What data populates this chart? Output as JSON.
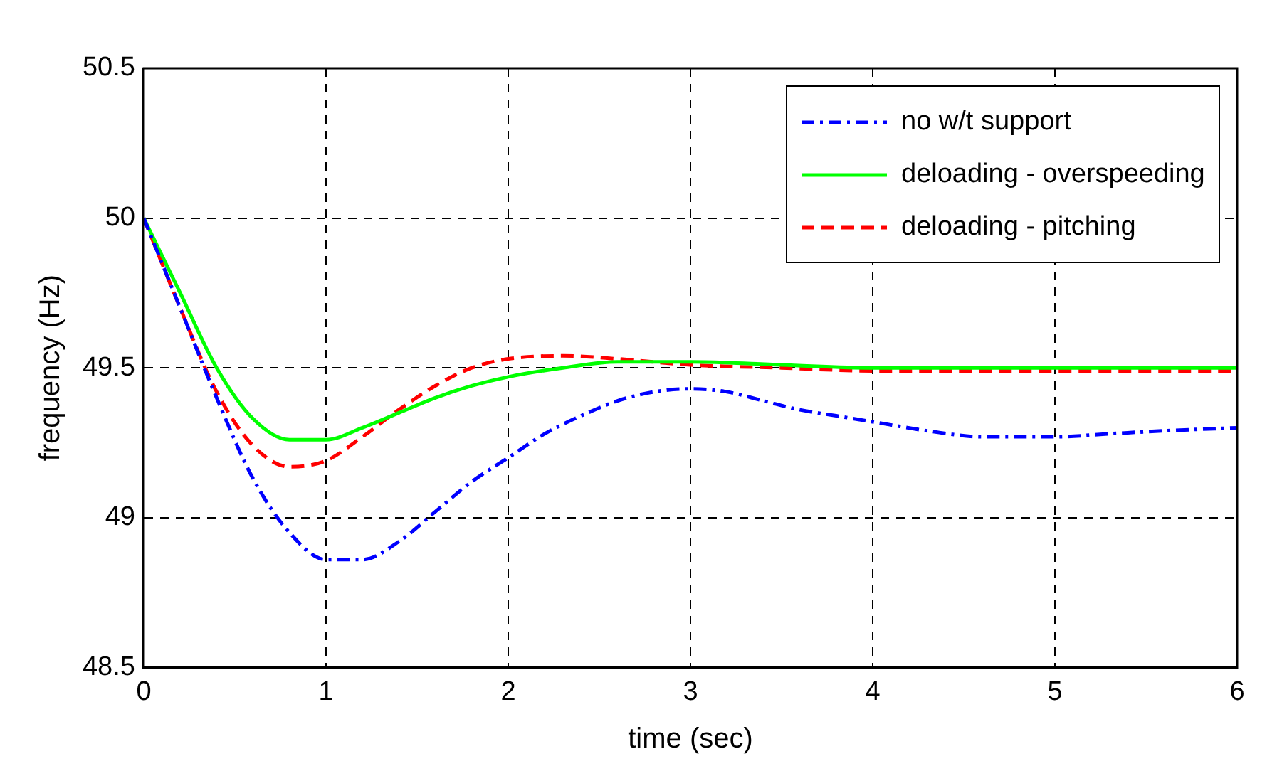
{
  "chart_data": {
    "type": "line",
    "xlabel": "time (sec)",
    "ylabel": "frequency (Hz)",
    "xlim": [
      0,
      6
    ],
    "xticks": [
      0,
      1,
      2,
      3,
      4,
      5,
      6
    ],
    "ylim": [
      48.5,
      50.5
    ],
    "yticks": [
      48.5,
      49,
      49.5,
      50,
      50.5
    ],
    "grid": true,
    "legend": "top right",
    "marker": "none",
    "series": [
      {
        "name": "no w/t support",
        "color": "#0000ff",
        "line_style": "dashdot",
        "x": [
          0,
          0.2,
          0.4,
          0.6,
          0.8,
          1,
          1.2,
          1.4,
          1.6,
          1.8,
          2,
          2.2,
          2.4,
          2.6,
          2.8,
          3,
          3.2,
          3.4,
          3.6,
          3.8,
          4,
          4.3,
          4.6,
          5,
          5.3,
          5.6,
          6
        ],
        "values": [
          50,
          49.7,
          49.4,
          49.13,
          48.95,
          48.86,
          48.86,
          48.92,
          49.02,
          49.12,
          49.2,
          49.28,
          49.34,
          49.39,
          49.42,
          49.43,
          49.42,
          49.39,
          49.36,
          49.34,
          49.32,
          49.29,
          49.27,
          49.27,
          49.28,
          49.29,
          49.3
        ]
      },
      {
        "name": "deloading - overspeeding",
        "color": "#00ff00",
        "line_style": "solid",
        "x": [
          0,
          0.2,
          0.4,
          0.6,
          0.8,
          1,
          1.2,
          1.4,
          1.6,
          1.8,
          2,
          2.3,
          2.6,
          3,
          3.5,
          4,
          5,
          6
        ],
        "values": [
          50,
          49.75,
          49.5,
          49.33,
          49.26,
          49.26,
          49.3,
          49.35,
          49.4,
          49.44,
          49.47,
          49.5,
          49.52,
          49.52,
          49.51,
          49.5,
          49.5,
          49.5
        ]
      },
      {
        "name": "deloading - pitching",
        "color": "#ff0000",
        "line_style": "dashed",
        "x": [
          0,
          0.2,
          0.4,
          0.6,
          0.8,
          1,
          1.2,
          1.4,
          1.6,
          1.8,
          2,
          2.3,
          2.6,
          3,
          3.5,
          4,
          5,
          6
        ],
        "values": [
          50,
          49.7,
          49.42,
          49.24,
          49.17,
          49.19,
          49.27,
          49.36,
          49.44,
          49.5,
          49.53,
          49.54,
          49.53,
          49.51,
          49.5,
          49.49,
          49.49,
          49.49
        ]
      }
    ]
  }
}
